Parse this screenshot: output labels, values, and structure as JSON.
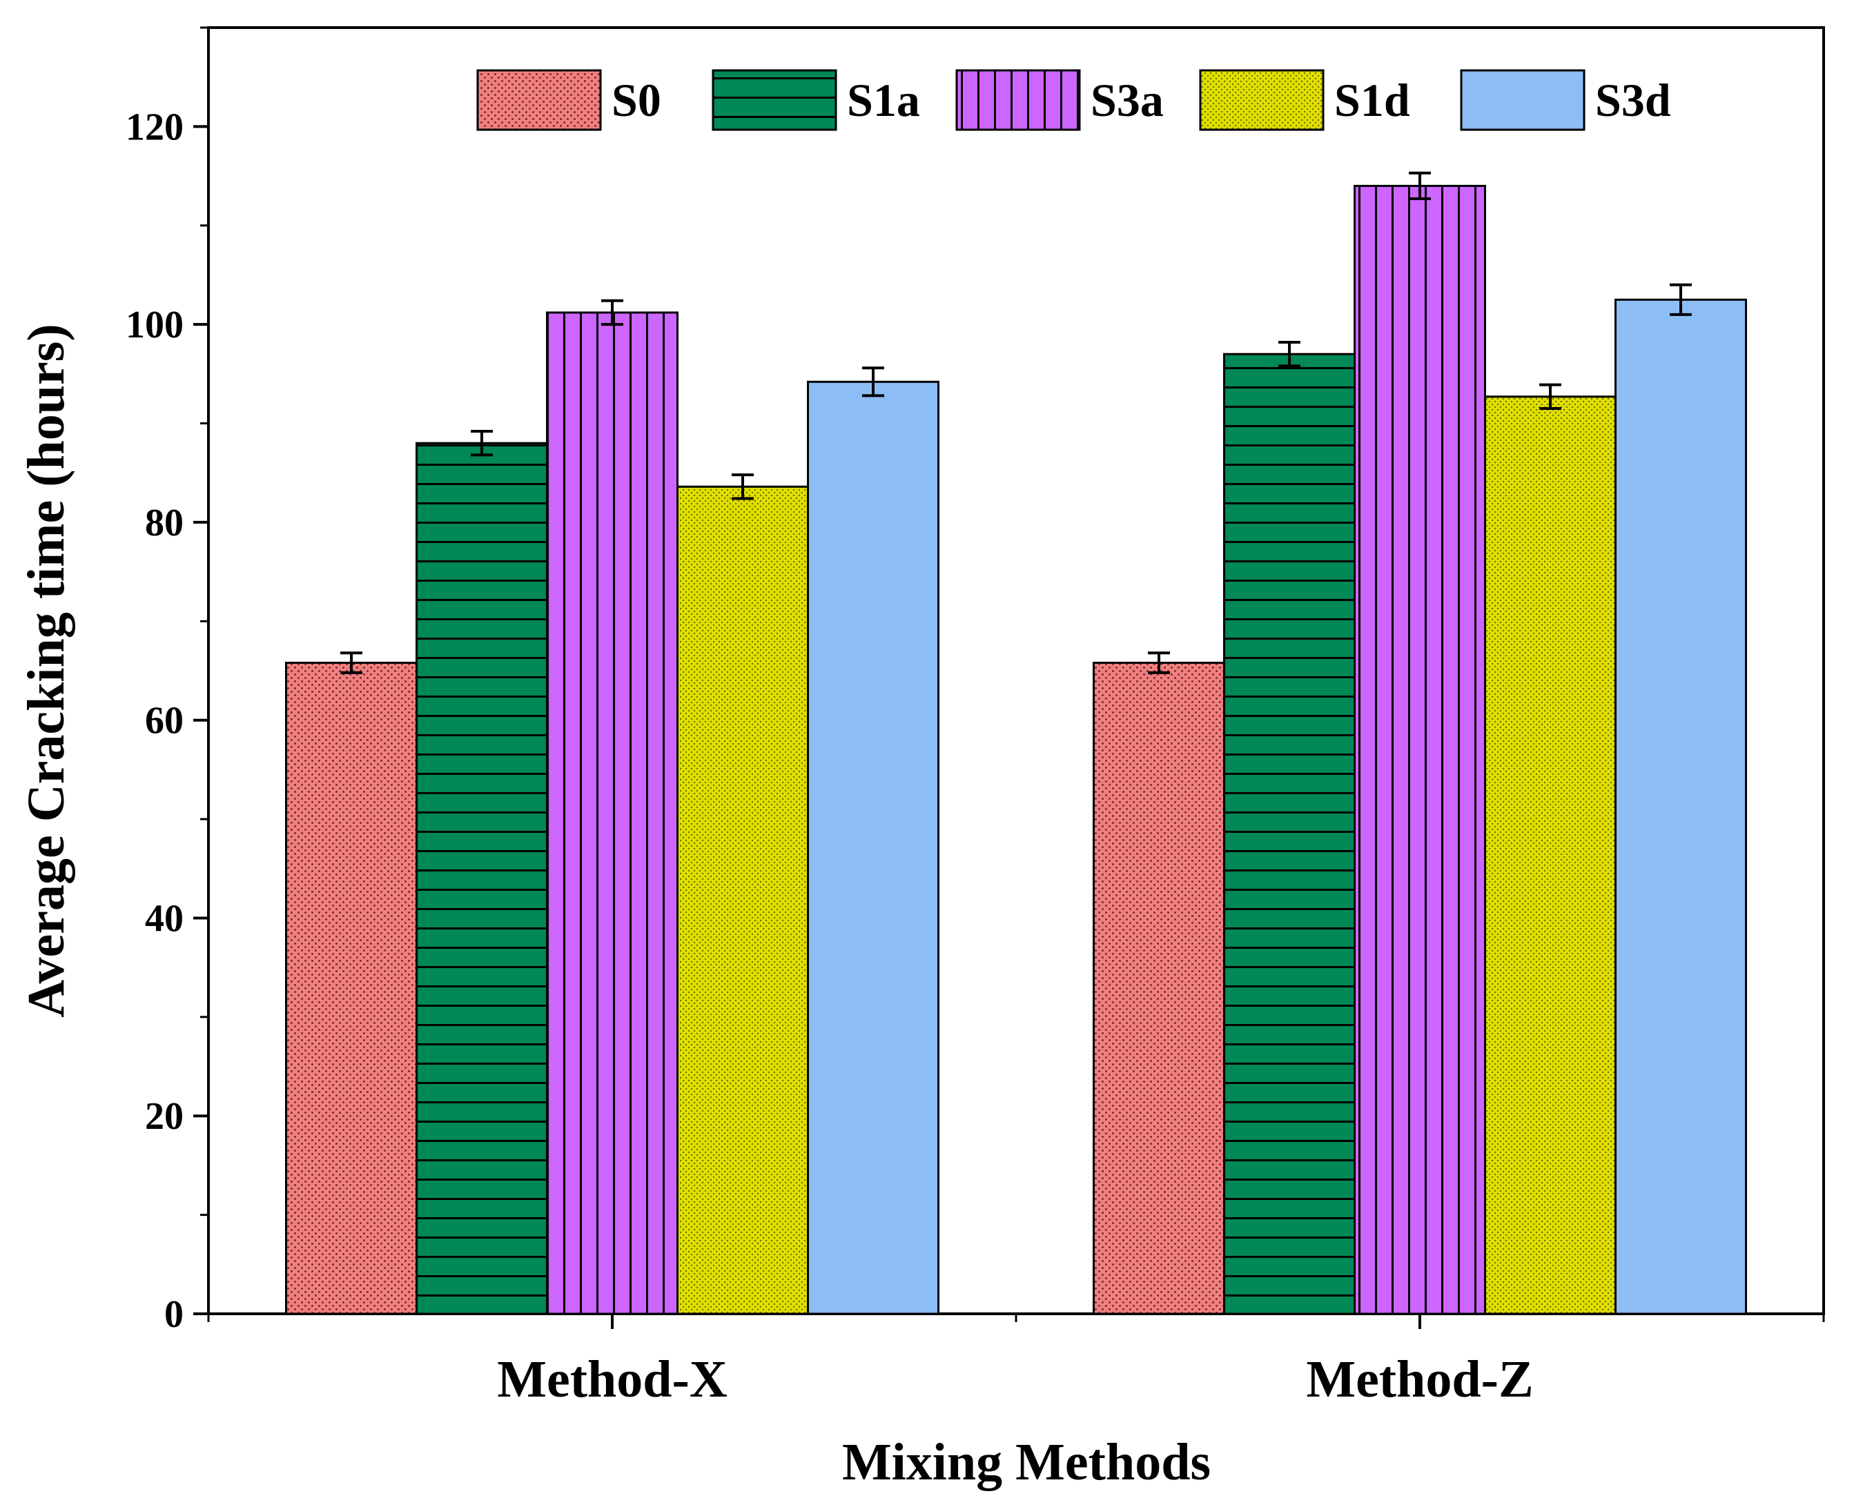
{
  "chart_data": {
    "type": "bar",
    "title": "",
    "xlabel": "Mixing Methods",
    "ylabel": "Average Cracking time (hours)",
    "categories": [
      "Method-X",
      "Method-Z"
    ],
    "ylim": [
      0,
      130
    ],
    "yticks": [
      0,
      20,
      40,
      60,
      80,
      100,
      120
    ],
    "grid": false,
    "legend_position": "top",
    "series": [
      {
        "name": "S0",
        "values": [
          65.8,
          65.8
        ],
        "errors": [
          1.0,
          1.0
        ],
        "color": "#F08080",
        "pattern": "dots"
      },
      {
        "name": "S1a",
        "values": [
          88.0,
          97.0
        ],
        "errors": [
          1.2,
          1.2
        ],
        "color": "#008855",
        "pattern": "horizontal"
      },
      {
        "name": "S3a",
        "values": [
          101.2,
          114.0
        ],
        "errors": [
          1.2,
          1.3
        ],
        "color": "#CC66FF",
        "pattern": "vertical"
      },
      {
        "name": "S1d",
        "values": [
          83.6,
          92.7
        ],
        "errors": [
          1.2,
          1.2
        ],
        "color": "#E0E000",
        "pattern": "dots"
      },
      {
        "name": "S3d",
        "values": [
          94.2,
          102.5
        ],
        "errors": [
          1.4,
          1.5
        ],
        "color": "#8DBDF5",
        "pattern": "none"
      }
    ]
  }
}
